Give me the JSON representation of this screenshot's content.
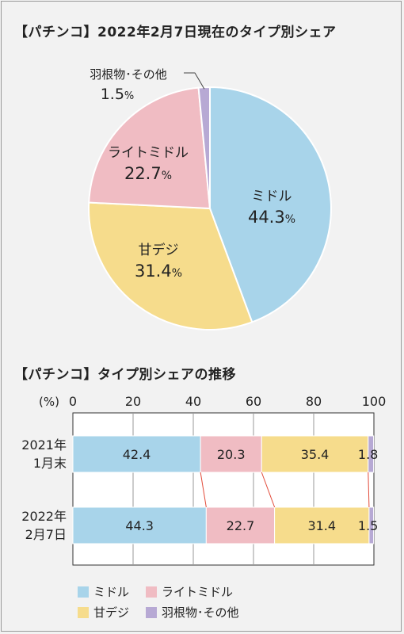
{
  "pie_title": "【パチンコ】2022年2月7日現在のタイプ別シェア",
  "bar_title": "【パチンコ】タイプ別シェアの推移",
  "colors": {
    "middle": "#a8d4ea",
    "light_middle": "#f0bcc3",
    "amadeji": "#f6dc8c",
    "other": "#b7a9d4",
    "connector": "#e24b3a"
  },
  "chart_data": [
    {
      "type": "pie",
      "title": "【パチンコ】2022年2月7日現在のタイプ別シェア",
      "unit": "%",
      "slices": [
        {
          "name": "ミドル",
          "value": 44.3,
          "key": "middle"
        },
        {
          "name": "甘デジ",
          "value": 31.4,
          "key": "amadeji"
        },
        {
          "name": "ライトミドル",
          "value": 22.7,
          "key": "light_middle"
        },
        {
          "name": "羽根物･その他",
          "value": 1.5,
          "key": "other"
        }
      ]
    },
    {
      "type": "bar",
      "orientation": "horizontal-stacked",
      "title": "【パチンコ】タイプ別シェアの推移",
      "axis_unit": "(%)",
      "xlim": [
        0,
        100
      ],
      "ticks": [
        0,
        20,
        40,
        60,
        80,
        100
      ],
      "categories": [
        [
          "2021年",
          "1月末"
        ],
        [
          "2022年",
          "2月7日"
        ]
      ],
      "series": [
        {
          "name": "ミドル",
          "key": "middle",
          "values": [
            42.4,
            44.3
          ]
        },
        {
          "name": "ライトミドル",
          "key": "light_middle",
          "values": [
            20.3,
            22.7
          ]
        },
        {
          "name": "甘デジ",
          "key": "amadeji",
          "values": [
            35.4,
            31.4
          ]
        },
        {
          "name": "羽根物･その他",
          "key": "other",
          "values": [
            1.8,
            1.5
          ]
        }
      ],
      "legend": [
        {
          "name": "ミドル",
          "key": "middle"
        },
        {
          "name": "ライトミドル",
          "key": "light_middle"
        },
        {
          "name": "甘デジ",
          "key": "amadeji"
        },
        {
          "name": "羽根物･その他",
          "key": "other"
        }
      ]
    }
  ]
}
